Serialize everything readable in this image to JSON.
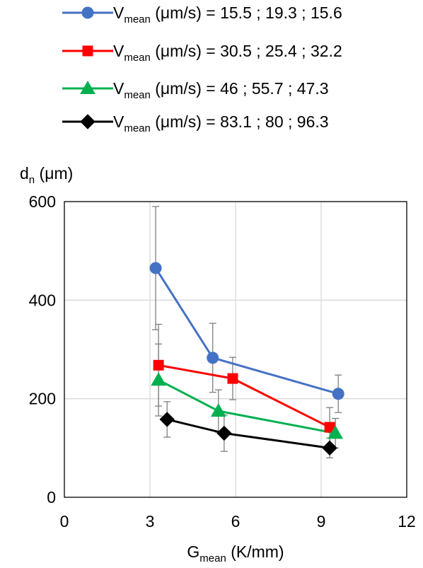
{
  "chart_data": {
    "type": "line",
    "ylabel": {
      "base": "d",
      "sub": "n",
      "unit": " (μm)"
    },
    "xlabel": {
      "base": "G",
      "sub": "mean",
      "unit": " (K/mm)"
    },
    "xlim": [
      0,
      12
    ],
    "ylim": [
      0,
      600
    ],
    "x_ticks": [
      0,
      3,
      6,
      9,
      12
    ],
    "y_ticks": [
      0,
      200,
      400,
      600
    ],
    "grid": true,
    "legend_position": "top",
    "series": [
      {
        "name": "V_mean (μm/s) = 15.5 ; 19.3 ; 15.6",
        "legend": {
          "base": "V",
          "sub": "mean",
          "rest": " (μm/s) = 15.5 ; 19.3 ; 15.6"
        },
        "color": "#4472C4",
        "marker": "circle",
        "points": [
          {
            "x": 3.2,
            "y": 465,
            "err": 125
          },
          {
            "x": 5.2,
            "y": 283,
            "err": 70
          },
          {
            "x": 9.6,
            "y": 210,
            "err": 38
          }
        ]
      },
      {
        "name": "V_mean (μm/s) = 30.5 ; 25.4 ; 32.2",
        "legend": {
          "base": "V",
          "sub": "mean",
          "rest": " (μm/s) = 30.5 ; 25.4 ; 32.2"
        },
        "color": "#FF0000",
        "marker": "square",
        "points": [
          {
            "x": 3.3,
            "y": 268,
            "err": 83
          },
          {
            "x": 5.9,
            "y": 241,
            "err": 43
          },
          {
            "x": 9.3,
            "y": 142,
            "err": 40
          }
        ]
      },
      {
        "name": "V_mean (μm/s) = 46 ; 55.7 ; 47.3",
        "legend": {
          "base": "V",
          "sub": "mean",
          "rest": " (μm/s) = 46 ; 55.7 ; 47.3"
        },
        "color": "#00B050",
        "marker": "triangle",
        "points": [
          {
            "x": 3.3,
            "y": 238,
            "err": 73
          },
          {
            "x": 5.4,
            "y": 175,
            "err": 43
          },
          {
            "x": 9.5,
            "y": 130,
            "err": 30
          }
        ]
      },
      {
        "name": "V_mean (μm/s) = 83.1 ; 80 ; 96.3",
        "legend": {
          "base": "V",
          "sub": "mean",
          "rest": " (μm/s) = 83.1 ; 80 ; 96.3"
        },
        "color": "#000000",
        "marker": "diamond",
        "points": [
          {
            "x": 3.6,
            "y": 158,
            "err": 36
          },
          {
            "x": 5.6,
            "y": 130,
            "err": 37
          },
          {
            "x": 9.3,
            "y": 100,
            "err": 20
          }
        ]
      }
    ]
  }
}
